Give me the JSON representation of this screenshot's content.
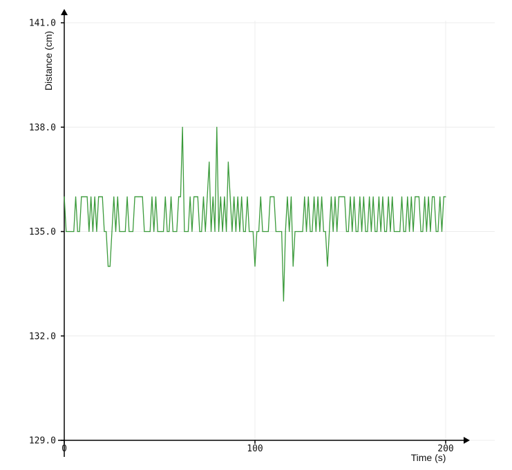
{
  "chart_data": {
    "type": "line",
    "title": "",
    "xlabel": "Time (s)",
    "ylabel": "Distance (cm)",
    "xlim": [
      0,
      200
    ],
    "ylim": [
      129,
      141
    ],
    "x_ticks": [
      0,
      100,
      200
    ],
    "x_tick_labels": [
      "0",
      "100",
      "200"
    ],
    "y_ticks": [
      129,
      132,
      135,
      138,
      141
    ],
    "y_tick_labels": [
      "129.0",
      "132.0",
      "135.0",
      "138.0",
      "141.0"
    ],
    "grid": true,
    "legend": "none",
    "colors": {
      "line": "#3a9a3a",
      "grid": "#ececec",
      "axis": "#000000"
    },
    "series": [
      {
        "x": [
          0,
          1,
          2,
          3,
          4,
          5,
          6,
          7,
          8,
          9,
          10,
          11,
          12,
          13,
          14,
          15,
          16,
          17,
          18,
          19,
          20,
          21,
          22,
          23,
          24,
          25,
          26,
          27,
          28,
          29,
          30,
          31,
          32,
          33,
          34,
          35,
          36,
          37,
          38,
          39,
          40,
          41,
          42,
          43,
          44,
          45,
          46,
          47,
          48,
          49,
          50,
          51,
          52,
          53,
          54,
          55,
          56,
          57,
          58,
          59,
          60,
          61,
          62,
          63,
          64,
          65,
          66,
          67,
          68,
          69,
          70,
          71,
          72,
          73,
          74,
          75,
          76,
          77,
          78,
          79,
          80,
          81,
          82,
          83,
          84,
          85,
          86,
          87,
          88,
          89,
          90,
          91,
          92,
          93,
          94,
          95,
          96,
          97,
          98,
          99,
          100,
          101,
          102,
          103,
          104,
          105,
          106,
          107,
          108,
          109,
          110,
          111,
          112,
          113,
          114,
          115,
          116,
          117,
          118,
          119,
          120,
          121,
          122,
          123,
          124,
          125,
          126,
          127,
          128,
          129,
          130,
          131,
          132,
          133,
          134,
          135,
          136,
          137,
          138,
          139,
          140,
          141,
          142,
          143,
          144,
          145,
          146,
          147,
          148,
          149,
          150,
          151,
          152,
          153,
          154,
          155,
          156,
          157,
          158,
          159,
          160,
          161,
          162,
          163,
          164,
          165,
          166,
          167,
          168,
          169,
          170,
          171,
          172,
          173,
          174,
          175,
          176,
          177,
          178,
          179,
          180,
          181,
          182,
          183,
          184,
          185,
          186,
          187,
          188,
          189,
          190,
          191,
          192,
          193,
          194,
          195,
          196,
          197,
          198,
          199,
          200
        ],
        "values": [
          136,
          135,
          135,
          135,
          135,
          135,
          136,
          135,
          135,
          136,
          136,
          136,
          136,
          135,
          136,
          135,
          136,
          135,
          136,
          136,
          136,
          135,
          135,
          134,
          134,
          135,
          136,
          135,
          136,
          135,
          135,
          135,
          135,
          136,
          135,
          135,
          135,
          136,
          136,
          136,
          136,
          136,
          135,
          135,
          135,
          135,
          136,
          135,
          136,
          135,
          135,
          135,
          135,
          136,
          135,
          135,
          136,
          135,
          135,
          135,
          136,
          136,
          138,
          135,
          135,
          135,
          136,
          135,
          136,
          136,
          136,
          135,
          135,
          136,
          135,
          136,
          137,
          135,
          136,
          135,
          138,
          135,
          136,
          135,
          136,
          135,
          137,
          136,
          135,
          136,
          135,
          136,
          135,
          136,
          135,
          135,
          136,
          135,
          135,
          135,
          134,
          135,
          135,
          136,
          135,
          135,
          135,
          135,
          136,
          136,
          136,
          135,
          135,
          135,
          135,
          133,
          135,
          136,
          135,
          136,
          134,
          135,
          135,
          135,
          135,
          135,
          136,
          135,
          136,
          135,
          135,
          136,
          135,
          136,
          135,
          136,
          135,
          135,
          134,
          135,
          136,
          135,
          136,
          135,
          136,
          136,
          136,
          136,
          135,
          135,
          136,
          135,
          136,
          135,
          135,
          136,
          135,
          136,
          135,
          135,
          136,
          135,
          136,
          135,
          135,
          136,
          135,
          136,
          135,
          135,
          136,
          135,
          136,
          135,
          135,
          135,
          135,
          136,
          135,
          135,
          136,
          135,
          136,
          135,
          136,
          136,
          136,
          135,
          135,
          136,
          135,
          136,
          135,
          136,
          136,
          135,
          135,
          136,
          135,
          136,
          136
        ]
      }
    ]
  }
}
